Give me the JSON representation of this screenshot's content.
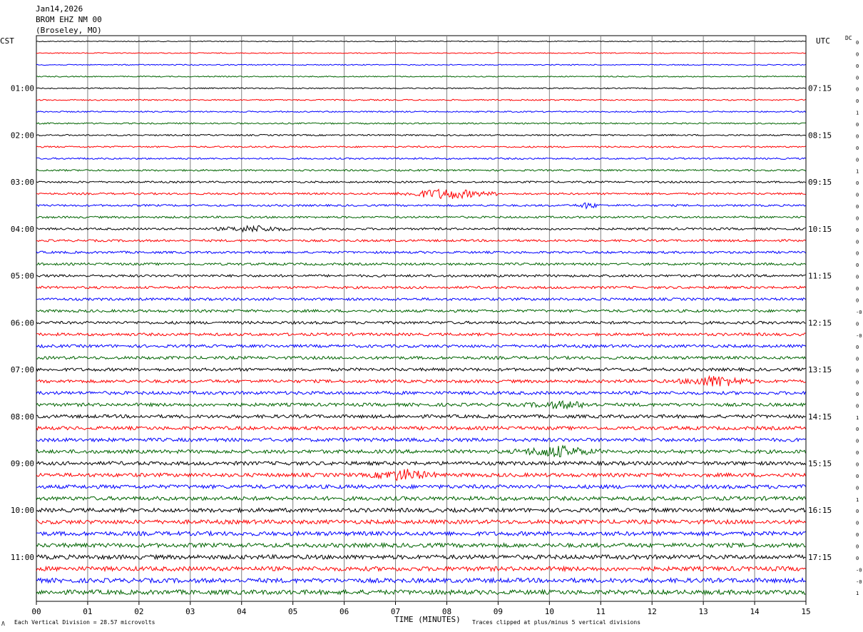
{
  "header": {
    "date": "Jan14,2026",
    "station": "BROM EHZ NM 00",
    "location": "(Broseley, MO)"
  },
  "axis": {
    "left_tz": "CST",
    "right_tz": "UTC",
    "dc_label": "DC",
    "xlabel": "TIME (MINUTES)"
  },
  "footer": {
    "left_note": "Each Vertical Division =   28.57 microvolts",
    "right_note": "Traces clipped at plus/minus 5 vertical divisions",
    "corner_mark": "Λ"
  },
  "colors": {
    "line1": "#000000",
    "line2": "#ff0000",
    "line3": "#0000ff",
    "line4": "#006400",
    "grid": "#808080"
  },
  "chart_data": {
    "type": "line",
    "title": "BROM EHZ NM 00",
    "x_ticks": [
      "00",
      "01",
      "02",
      "03",
      "04",
      "05",
      "06",
      "07",
      "08",
      "09",
      "10",
      "11",
      "12",
      "13",
      "14",
      "15"
    ],
    "xlim": [
      0,
      15
    ],
    "minutes_per_line": 15,
    "line_count": 48,
    "trace_color_cycle": [
      "#000000",
      "#ff0000",
      "#0000ff",
      "#006400"
    ],
    "left_hour_labels": [
      "01:00",
      "02:00",
      "03:00",
      "04:00",
      "05:00",
      "06:00",
      "07:00",
      "08:00",
      "09:00",
      "10:00",
      "11:00"
    ],
    "right_hour_labels": [
      "07:15",
      "08:15",
      "09:15",
      "10:15",
      "11:15",
      "12:15",
      "13:15",
      "14:15",
      "15:15",
      "16:15",
      "17:15"
    ],
    "dc_offsets": [
      "0",
      "0",
      "0",
      "0",
      "0",
      "0",
      "1",
      "0",
      "0",
      "0",
      "0",
      "1",
      "0",
      "0",
      "0",
      "0",
      "0",
      "0",
      "0",
      "0",
      "0",
      "0",
      "0",
      "-0",
      "0",
      "-0",
      "0",
      "0",
      "0",
      "0",
      "0",
      "0",
      "1",
      "0",
      "0",
      "0",
      "0",
      "0",
      "0",
      "1",
      "0",
      "0",
      "0",
      "0",
      "0",
      "-0",
      "-0",
      "1"
    ],
    "events": [
      {
        "line": 13,
        "minute_start": 7.0,
        "minute_end": 9.0,
        "amplitude": "large"
      },
      {
        "line": 14,
        "minute_start": 10.5,
        "minute_end": 11.0,
        "amplitude": "medium"
      },
      {
        "line": 16,
        "minute_start": 3.5,
        "minute_end": 5.0,
        "amplitude": "medium"
      },
      {
        "line": 29,
        "minute_start": 12.5,
        "minute_end": 14.0,
        "amplitude": "large"
      },
      {
        "line": 31,
        "minute_start": 9.5,
        "minute_end": 11.0,
        "amplitude": "medium"
      },
      {
        "line": 35,
        "minute_start": 9.3,
        "minute_end": 11.0,
        "amplitude": "large"
      },
      {
        "line": 37,
        "minute_start": 6.5,
        "minute_end": 7.8,
        "amplitude": "large"
      }
    ]
  }
}
